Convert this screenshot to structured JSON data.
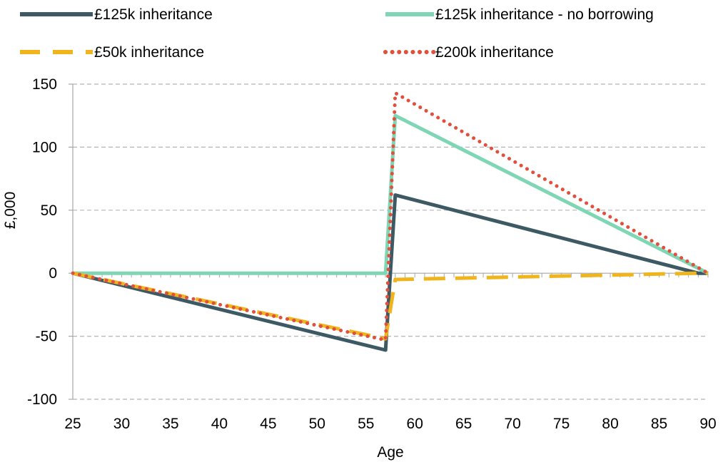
{
  "chart_data": {
    "type": "line",
    "title": "",
    "xlabel": "Age",
    "ylabel": "£,000",
    "xlim": [
      25,
      90
    ],
    "ylim": [
      -100,
      150
    ],
    "x_ticks": [
      25,
      30,
      35,
      40,
      45,
      50,
      55,
      60,
      65,
      70,
      75,
      80,
      85,
      90
    ],
    "y_ticks": [
      -100,
      -50,
      0,
      50,
      100,
      150
    ],
    "grid": "horizontal dashed",
    "legend_position": "top",
    "series": [
      {
        "name": "£125k inheritance",
        "color": "#3d5a64",
        "style": "solid",
        "points": [
          [
            25,
            0
          ],
          [
            57,
            -61
          ],
          [
            58,
            62
          ],
          [
            89,
            0
          ],
          [
            90,
            0
          ]
        ]
      },
      {
        "name": "£125k inheritance - no borrowing",
        "color": "#7ed6b4",
        "style": "solid",
        "points": [
          [
            25,
            0
          ],
          [
            57,
            0
          ],
          [
            58,
            125
          ],
          [
            90,
            0
          ]
        ]
      },
      {
        "name": "£50k inheritance",
        "color": "#f0b41c",
        "style": "dashed",
        "points": [
          [
            25,
            0
          ],
          [
            57,
            -52
          ],
          [
            58,
            -5
          ],
          [
            89,
            0
          ],
          [
            90,
            0
          ]
        ]
      },
      {
        "name": "£200k inheritance",
        "color": "#e0503c",
        "style": "dotted",
        "points": [
          [
            25,
            0
          ],
          [
            57,
            -53
          ],
          [
            58,
            143
          ],
          [
            90,
            0
          ]
        ]
      }
    ]
  }
}
